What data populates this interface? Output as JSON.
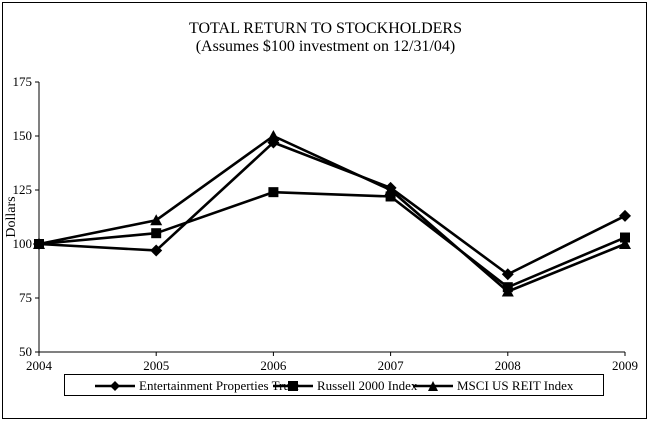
{
  "chart_data": {
    "type": "line",
    "title": "TOTAL RETURN TO STOCKHOLDERS",
    "subtitle": "(Assumes $100 investment on 12/31/04)",
    "xlabel": "",
    "ylabel": "Dollars",
    "x": [
      "2004",
      "2005",
      "2006",
      "2007",
      "2008",
      "2009"
    ],
    "ylim": [
      50,
      175
    ],
    "yticks": [
      "50",
      "75",
      "100",
      "125",
      "150",
      "175"
    ],
    "grid": false,
    "legend_position": "bottom",
    "series": [
      {
        "name": "Entertainment Properties Trust",
        "marker": "diamond",
        "color": "#000000",
        "values": [
          100,
          97,
          147,
          126,
          86,
          113
        ]
      },
      {
        "name": "Russell 2000 Index",
        "marker": "square",
        "color": "#000000",
        "values": [
          100,
          105,
          124,
          122,
          80,
          103
        ]
      },
      {
        "name": "MSCI US REIT Index",
        "marker": "triangle",
        "color": "#000000",
        "values": [
          100,
          111,
          150,
          125,
          78,
          100
        ]
      }
    ]
  }
}
